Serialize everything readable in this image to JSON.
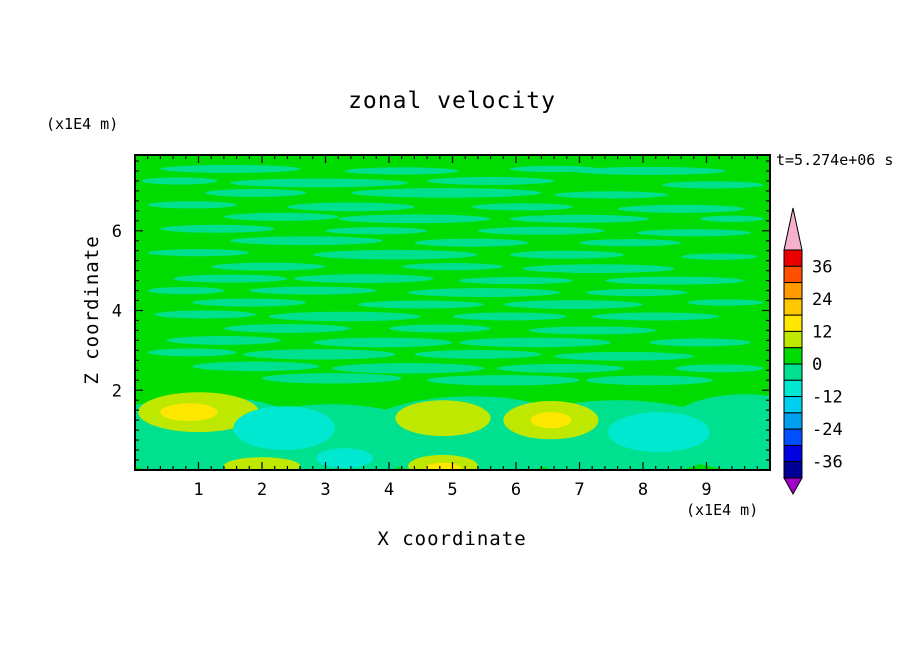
{
  "chart_data": {
    "type": "heatmap",
    "title": "zonal velocity",
    "timestamp": "t=5.274e+06 s",
    "xlabel": "X coordinate",
    "ylabel": "Z coordinate",
    "x_units_label": "(x1E4 m)",
    "z_units_label": "(x1E4 m)",
    "xlim": [
      0,
      10
    ],
    "ylim": [
      0,
      7.9
    ],
    "xticks": [
      1,
      2,
      3,
      4,
      5,
      6,
      7,
      8,
      9
    ],
    "yticks": [
      2,
      4,
      6
    ],
    "x_minor_step": 0.2,
    "y_minor_step": 0.25,
    "grid": false,
    "colorbar": {
      "position": "right",
      "levels": [
        -42,
        -36,
        -30,
        -24,
        -18,
        -12,
        -6,
        0,
        6,
        12,
        18,
        24,
        30,
        36,
        42
      ],
      "tick_labels": [
        "36",
        "24",
        "12",
        "0",
        "-12",
        "-24",
        "-36"
      ],
      "segment_colors_top_to_bottom": [
        "#EB0000",
        "#FF5000",
        "#FF9B00",
        "#FFC800",
        "#FFE800",
        "#BFE800",
        "#00DC00",
        "#00E18F",
        "#00E8D0",
        "#00D0F0",
        "#00A0F0",
        "#0050FF",
        "#0000E0",
        "#000096"
      ],
      "over_color": "#F5B0CD",
      "under_color": "#A000C8"
    },
    "field": {
      "description": "Filled contour field, mostly in the 0..6 band (green) with thin -6..0 streaks; boundary-layer structure below z=2 with +6..18 (yellow-green/yellow) and -12..-6 (cyan) blobs.",
      "background_band": "0..6",
      "background_color": "#00DC00",
      "streak_band": "-6..0",
      "streak_color": "#00E18F",
      "streaks": [
        [
          1.5,
          7.55,
          1.1,
          0.1
        ],
        [
          4.2,
          7.5,
          0.9,
          0.09
        ],
        [
          6.6,
          7.55,
          0.7,
          0.08
        ],
        [
          8.1,
          7.5,
          1.2,
          0.1
        ],
        [
          0.7,
          7.25,
          0.6,
          0.09
        ],
        [
          2.9,
          7.2,
          1.4,
          0.11
        ],
        [
          5.6,
          7.25,
          1.0,
          0.1
        ],
        [
          9.1,
          7.15,
          0.8,
          0.09
        ],
        [
          1.9,
          6.95,
          0.8,
          0.1
        ],
        [
          4.9,
          6.95,
          1.5,
          0.12
        ],
        [
          7.5,
          6.9,
          0.9,
          0.09
        ],
        [
          0.9,
          6.65,
          0.7,
          0.09
        ],
        [
          3.4,
          6.6,
          1.0,
          0.11
        ],
        [
          6.1,
          6.6,
          0.8,
          0.09
        ],
        [
          8.6,
          6.55,
          1.0,
          0.1
        ],
        [
          2.3,
          6.35,
          0.9,
          0.1
        ],
        [
          4.4,
          6.3,
          1.2,
          0.11
        ],
        [
          7.0,
          6.3,
          1.1,
          0.1
        ],
        [
          9.4,
          6.3,
          0.5,
          0.08
        ],
        [
          1.3,
          6.05,
          0.9,
          0.1
        ],
        [
          3.8,
          6.0,
          0.8,
          0.09
        ],
        [
          6.4,
          6.0,
          1.0,
          0.1
        ],
        [
          8.8,
          5.95,
          0.9,
          0.09
        ],
        [
          2.7,
          5.75,
          1.2,
          0.11
        ],
        [
          5.3,
          5.7,
          0.9,
          0.1
        ],
        [
          7.8,
          5.7,
          0.8,
          0.09
        ],
        [
          1.0,
          5.45,
          0.8,
          0.09
        ],
        [
          4.1,
          5.4,
          1.3,
          0.12
        ],
        [
          6.8,
          5.4,
          0.9,
          0.1
        ],
        [
          9.2,
          5.35,
          0.6,
          0.08
        ],
        [
          2.1,
          5.1,
          0.9,
          0.1
        ],
        [
          5.0,
          5.1,
          0.8,
          0.09
        ],
        [
          7.3,
          5.05,
          1.2,
          0.11
        ],
        [
          1.5,
          4.8,
          0.9,
          0.1
        ],
        [
          3.6,
          4.8,
          1.1,
          0.11
        ],
        [
          6.0,
          4.75,
          0.9,
          0.09
        ],
        [
          8.5,
          4.75,
          1.1,
          0.1
        ],
        [
          0.8,
          4.5,
          0.6,
          0.09
        ],
        [
          2.8,
          4.5,
          1.0,
          0.1
        ],
        [
          5.5,
          4.45,
          1.2,
          0.11
        ],
        [
          7.9,
          4.45,
          0.8,
          0.09
        ],
        [
          1.8,
          4.2,
          0.9,
          0.1
        ],
        [
          4.5,
          4.15,
          1.0,
          0.1
        ],
        [
          6.9,
          4.15,
          1.1,
          0.11
        ],
        [
          9.3,
          4.2,
          0.6,
          0.08
        ],
        [
          1.1,
          3.9,
          0.8,
          0.1
        ],
        [
          3.3,
          3.85,
          1.2,
          0.12
        ],
        [
          5.9,
          3.85,
          0.9,
          0.1
        ],
        [
          8.2,
          3.85,
          1.0,
          0.1
        ],
        [
          2.4,
          3.55,
          1.0,
          0.11
        ],
        [
          4.8,
          3.55,
          0.8,
          0.1
        ],
        [
          7.2,
          3.5,
          1.0,
          0.1
        ],
        [
          1.4,
          3.25,
          0.9,
          0.11
        ],
        [
          3.9,
          3.2,
          1.1,
          0.12
        ],
        [
          6.3,
          3.2,
          1.2,
          0.12
        ],
        [
          8.9,
          3.2,
          0.8,
          0.1
        ],
        [
          0.9,
          2.95,
          0.7,
          0.1
        ],
        [
          2.9,
          2.9,
          1.2,
          0.13
        ],
        [
          5.4,
          2.9,
          1.0,
          0.11
        ],
        [
          7.7,
          2.85,
          1.1,
          0.11
        ],
        [
          1.9,
          2.6,
          1.0,
          0.12
        ],
        [
          4.3,
          2.55,
          1.2,
          0.13
        ],
        [
          6.7,
          2.55,
          1.0,
          0.11
        ],
        [
          9.2,
          2.55,
          0.7,
          0.1
        ],
        [
          3.1,
          2.3,
          1.1,
          0.13
        ],
        [
          5.8,
          2.25,
          1.2,
          0.13
        ],
        [
          8.1,
          2.25,
          1.0,
          0.12
        ]
      ],
      "bottom_band": [
        [
          1.1,
          0.85,
          1.7,
          1.0
        ],
        [
          3.1,
          0.75,
          1.6,
          0.9
        ],
        [
          5.3,
          0.85,
          1.8,
          1.0
        ],
        [
          7.6,
          0.8,
          1.8,
          0.95
        ],
        [
          9.6,
          0.95,
          1.3,
          0.95
        ]
      ],
      "blobs": [
        {
          "x": 1.0,
          "z": 1.45,
          "rx": 0.95,
          "rz": 0.5,
          "band": "6..12",
          "color": "#BFE800"
        },
        {
          "x": 0.85,
          "z": 1.45,
          "rx": 0.45,
          "rz": 0.22,
          "band": "12..18",
          "color": "#FFE800"
        },
        {
          "x": 2.35,
          "z": 1.05,
          "rx": 0.8,
          "rz": 0.55,
          "band": "-12..-6",
          "color": "#00E8D0"
        },
        {
          "x": 3.3,
          "z": 0.3,
          "rx": 0.45,
          "rz": 0.25,
          "band": "-12..-6",
          "color": "#00E8D0"
        },
        {
          "x": 2.0,
          "z": 0.1,
          "rx": 0.6,
          "rz": 0.22,
          "band": "6..12",
          "color": "#BFE800"
        },
        {
          "x": 4.85,
          "z": 1.3,
          "rx": 0.75,
          "rz": 0.45,
          "band": "6..12",
          "color": "#BFE800"
        },
        {
          "x": 4.85,
          "z": 0.1,
          "rx": 0.55,
          "rz": 0.28,
          "band": "6..12",
          "color": "#BFE800"
        },
        {
          "x": 4.85,
          "z": 0.05,
          "rx": 0.28,
          "rz": 0.13,
          "band": "12..18",
          "color": "#FFE800"
        },
        {
          "x": 6.55,
          "z": 1.25,
          "rx": 0.75,
          "rz": 0.48,
          "band": "6..12",
          "color": "#BFE800"
        },
        {
          "x": 6.55,
          "z": 1.25,
          "rx": 0.32,
          "rz": 0.2,
          "band": "12..18",
          "color": "#FFE800"
        },
        {
          "x": 8.25,
          "z": 0.95,
          "rx": 0.8,
          "rz": 0.5,
          "band": "-12..-6",
          "color": "#00E8D0"
        }
      ]
    }
  }
}
